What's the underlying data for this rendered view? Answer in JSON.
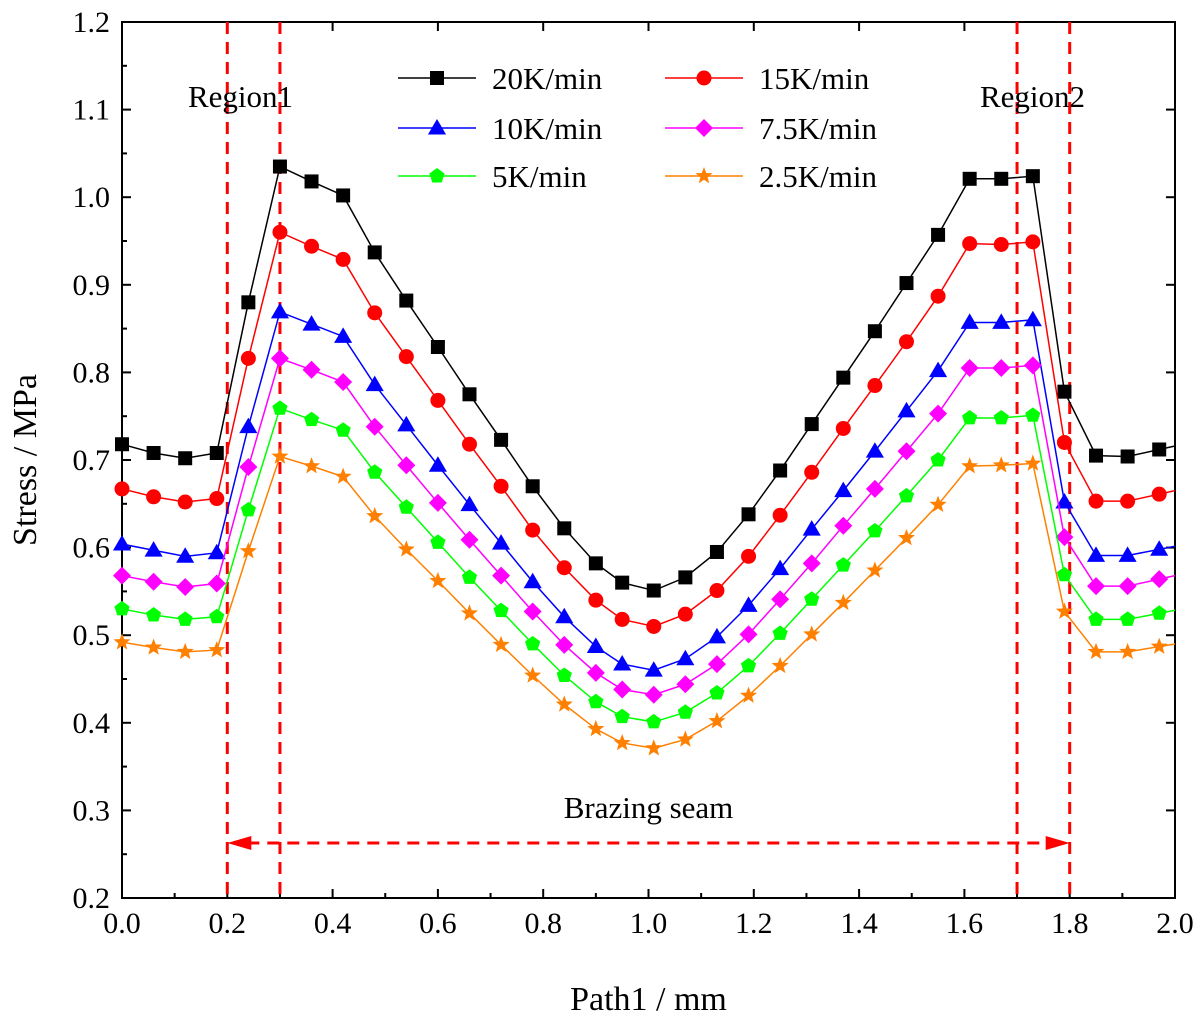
{
  "chart_data": {
    "type": "line",
    "xlabel": "Path1 / mm",
    "ylabel": "Stress / MPa",
    "xlim": [
      0.0,
      2.0
    ],
    "ylim": [
      0.2,
      1.2
    ],
    "xticks": [
      "0.0",
      "0.2",
      "0.4",
      "0.6",
      "0.8",
      "1.0",
      "1.2",
      "1.4",
      "1.6",
      "1.8",
      "2.0"
    ],
    "yticks": [
      "0.2",
      "0.3",
      "0.4",
      "0.5",
      "0.6",
      "0.7",
      "0.8",
      "0.9",
      "1.0",
      "1.1",
      "1.2"
    ],
    "x": [
      0.0,
      0.06,
      0.12,
      0.18,
      0.24,
      0.3,
      0.36,
      0.42,
      0.48,
      0.54,
      0.6,
      0.66,
      0.72,
      0.78,
      0.84,
      0.9,
      0.95,
      1.01,
      1.07,
      1.13,
      1.19,
      1.25,
      1.31,
      1.37,
      1.43,
      1.49,
      1.55,
      1.61,
      1.67,
      1.73,
      1.79,
      1.85,
      1.91,
      1.97
    ],
    "series": [
      {
        "name": "20K/min",
        "color": "#000000",
        "marker": "square",
        "values": [
          0.718,
          0.708,
          0.702,
          0.708,
          0.88,
          1.035,
          1.018,
          1.002,
          0.937,
          0.882,
          0.829,
          0.775,
          0.723,
          0.67,
          0.622,
          0.582,
          0.56,
          0.551,
          0.566,
          0.595,
          0.638,
          0.688,
          0.741,
          0.794,
          0.847,
          0.902,
          0.957,
          1.021,
          1.021,
          1.024,
          0.778,
          0.705,
          0.704,
          0.712
        ]
      },
      {
        "name": "15K/min",
        "color": "#ff0000",
        "marker": "circle",
        "values": [
          0.667,
          0.658,
          0.652,
          0.656,
          0.816,
          0.96,
          0.944,
          0.929,
          0.868,
          0.818,
          0.768,
          0.718,
          0.67,
          0.62,
          0.577,
          0.54,
          0.518,
          0.51,
          0.524,
          0.551,
          0.59,
          0.637,
          0.686,
          0.736,
          0.785,
          0.835,
          0.887,
          0.947,
          0.946,
          0.949,
          0.72,
          0.653,
          0.653,
          0.661
        ]
      },
      {
        "name": "10K/min",
        "color": "#0000ff",
        "marker": "triangle",
        "values": [
          0.604,
          0.597,
          0.59,
          0.594,
          0.738,
          0.869,
          0.855,
          0.841,
          0.786,
          0.74,
          0.694,
          0.649,
          0.605,
          0.561,
          0.521,
          0.487,
          0.467,
          0.46,
          0.473,
          0.498,
          0.534,
          0.576,
          0.621,
          0.665,
          0.71,
          0.756,
          0.802,
          0.857,
          0.857,
          0.86,
          0.652,
          0.591,
          0.591,
          0.598
        ]
      },
      {
        "name": "7.5K/min",
        "color": "#ff00ff",
        "marker": "diamond",
        "values": [
          0.568,
          0.561,
          0.555,
          0.559,
          0.692,
          0.816,
          0.803,
          0.789,
          0.738,
          0.694,
          0.651,
          0.609,
          0.568,
          0.527,
          0.489,
          0.457,
          0.438,
          0.432,
          0.444,
          0.467,
          0.501,
          0.541,
          0.582,
          0.625,
          0.667,
          0.71,
          0.753,
          0.805,
          0.805,
          0.808,
          0.612,
          0.556,
          0.556,
          0.564
        ]
      },
      {
        "name": "5K/min",
        "color": "#00ff00",
        "marker": "pentagon",
        "values": [
          0.53,
          0.523,
          0.518,
          0.521,
          0.643,
          0.759,
          0.746,
          0.734,
          0.686,
          0.646,
          0.606,
          0.566,
          0.528,
          0.49,
          0.454,
          0.424,
          0.407,
          0.401,
          0.412,
          0.434,
          0.465,
          0.502,
          0.541,
          0.58,
          0.619,
          0.659,
          0.7,
          0.748,
          0.748,
          0.751,
          0.569,
          0.518,
          0.518,
          0.525
        ]
      },
      {
        "name": "2.5K/min",
        "color": "#ff8000",
        "marker": "star",
        "values": [
          0.492,
          0.486,
          0.481,
          0.483,
          0.596,
          0.704,
          0.693,
          0.681,
          0.636,
          0.598,
          0.562,
          0.525,
          0.489,
          0.454,
          0.421,
          0.393,
          0.377,
          0.371,
          0.381,
          0.402,
          0.431,
          0.465,
          0.501,
          0.537,
          0.574,
          0.611,
          0.649,
          0.693,
          0.694,
          0.696,
          0.527,
          0.481,
          0.481,
          0.487
        ]
      }
    ],
    "vlines": [
      0.2,
      0.3,
      1.7,
      1.8
    ],
    "annotations": {
      "region1": "Region1",
      "region2": "Region2",
      "seam": "Brazing seam"
    },
    "legend_position": "top-center"
  }
}
